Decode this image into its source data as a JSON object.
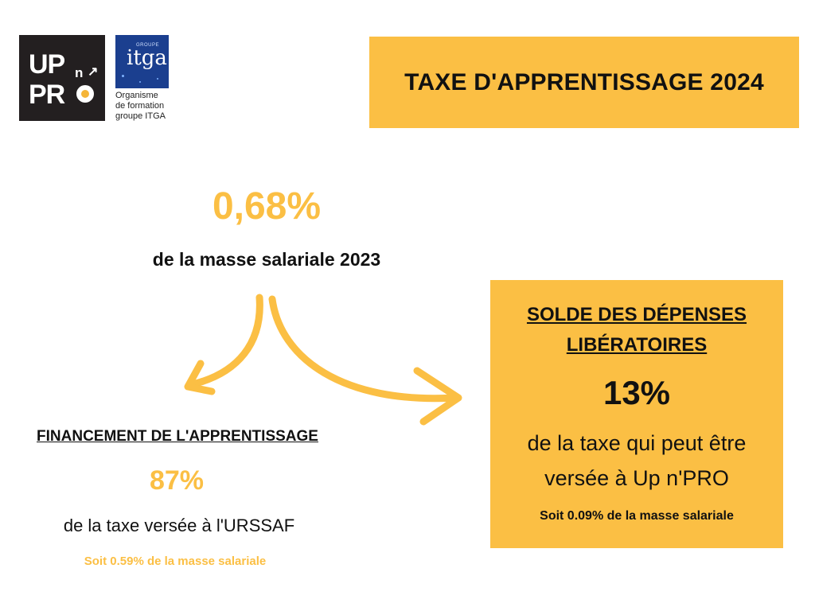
{
  "logo": {
    "up_line1": "UP",
    "up_n": "n",
    "up_arrow": "↗",
    "up_line2": "PR",
    "itga_groupe": "GROUPE",
    "itga_word": "itga",
    "caption": [
      "Organisme",
      "de formation",
      "groupe ITGA"
    ]
  },
  "title": "TAXE D'APPRENTISSAGE 2024",
  "top_stat": {
    "percent": "0,68%",
    "description": "de la masse salariale 2023"
  },
  "financement": {
    "title": "FINANCEMENT DE L'APPRENTISSAGE",
    "percent": "87%",
    "description": "de la taxe versée à l'URSSAF",
    "sub": "Soit 0.59% de la masse salariale"
  },
  "solde": {
    "title_lines": [
      "SOLDE DES DÉPENSES",
      "LIBÉRATOIRES"
    ],
    "percent": "13%",
    "description_lines": [
      "de la taxe qui peut être",
      "versée à Up n'PRO"
    ],
    "sub": "Soit 0.09% de la masse salariale"
  },
  "colors": {
    "accent": "#fbbf44",
    "text": "#111111",
    "logo_dark": "#231f20",
    "itga_blue": "#1b3f8f"
  },
  "icons": [
    "arrow-left-curved-icon",
    "arrow-right-curved-icon"
  ]
}
